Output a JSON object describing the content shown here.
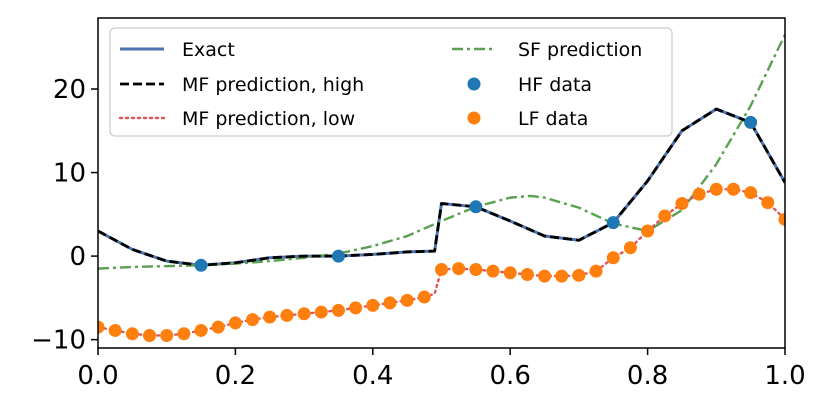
{
  "chart_data": {
    "type": "line",
    "title": "",
    "xlabel": "",
    "ylabel": "",
    "xlim": [
      0.0,
      1.0
    ],
    "ylim": [
      -11.0,
      28.5
    ],
    "grid": false,
    "legend_position": "top-left",
    "x_ticks": [
      0.0,
      0.2,
      0.4,
      0.6,
      0.8,
      1.0
    ],
    "x_tick_labels": [
      "0.0",
      "0.2",
      "0.4",
      "0.6",
      "0.8",
      "1.0"
    ],
    "y_ticks": [
      -10,
      0,
      10,
      20
    ],
    "y_tick_labels": [
      "−10",
      "0",
      "10",
      "20"
    ],
    "series": [
      {
        "name": "Exact",
        "kind": "line",
        "color": "#4c72b0",
        "style": "solid",
        "x": [
          0.0,
          0.05,
          0.1,
          0.15,
          0.2,
          0.25,
          0.3,
          0.35,
          0.4,
          0.45,
          0.49,
          0.5,
          0.55,
          0.6,
          0.65,
          0.7,
          0.75,
          0.8,
          0.85,
          0.9,
          0.95,
          1.0
        ],
        "y": [
          3.0,
          0.8,
          -0.6,
          -1.1,
          -0.8,
          -0.2,
          0.0,
          0.0,
          0.2,
          0.5,
          0.6,
          6.3,
          5.9,
          4.2,
          2.4,
          1.9,
          4.0,
          9.0,
          15.0,
          17.6,
          16.0,
          8.8
        ]
      },
      {
        "name": "MF prediction, high",
        "kind": "line",
        "color": "#000000",
        "style": "dashed",
        "x": [
          0.0,
          0.05,
          0.1,
          0.15,
          0.2,
          0.25,
          0.3,
          0.35,
          0.4,
          0.45,
          0.49,
          0.5,
          0.55,
          0.6,
          0.65,
          0.7,
          0.75,
          0.8,
          0.85,
          0.9,
          0.95,
          1.0
        ],
        "y": [
          3.0,
          0.8,
          -0.6,
          -1.1,
          -0.8,
          -0.2,
          0.0,
          0.0,
          0.2,
          0.5,
          0.6,
          6.3,
          5.9,
          4.2,
          2.4,
          1.9,
          4.0,
          9.0,
          15.0,
          17.6,
          16.0,
          8.8
        ]
      },
      {
        "name": "MF prediction, low",
        "kind": "line",
        "color": "#e15759",
        "style": "dotted",
        "x": [
          0.0,
          0.025,
          0.05,
          0.075,
          0.1,
          0.125,
          0.15,
          0.175,
          0.2,
          0.225,
          0.25,
          0.275,
          0.3,
          0.325,
          0.35,
          0.375,
          0.4,
          0.425,
          0.45,
          0.475,
          0.49,
          0.5,
          0.525,
          0.55,
          0.575,
          0.6,
          0.625,
          0.65,
          0.675,
          0.7,
          0.725,
          0.75,
          0.775,
          0.8,
          0.825,
          0.85,
          0.875,
          0.9,
          0.925,
          0.95,
          0.975,
          1.0
        ],
        "y": [
          -8.5,
          -8.9,
          -9.3,
          -9.5,
          -9.5,
          -9.3,
          -8.9,
          -8.5,
          -8.0,
          -7.6,
          -7.3,
          -7.1,
          -6.9,
          -6.7,
          -6.5,
          -6.2,
          -5.9,
          -5.6,
          -5.3,
          -4.9,
          -4.5,
          -1.6,
          -1.5,
          -1.6,
          -1.8,
          -2.0,
          -2.2,
          -2.4,
          -2.4,
          -2.3,
          -1.8,
          -0.2,
          1.0,
          3.0,
          4.8,
          6.3,
          7.4,
          8.0,
          8.0,
          7.6,
          6.4,
          4.4
        ]
      },
      {
        "name": "SF prediction",
        "kind": "line",
        "color": "#59a14f",
        "style": "dashdot",
        "x": [
          0.0,
          0.05,
          0.1,
          0.15,
          0.2,
          0.25,
          0.3,
          0.35,
          0.4,
          0.45,
          0.5,
          0.55,
          0.6,
          0.63,
          0.65,
          0.7,
          0.75,
          0.8,
          0.85,
          0.9,
          0.95,
          1.0
        ],
        "y": [
          -1.5,
          -1.3,
          -1.2,
          -1.1,
          -0.9,
          -0.6,
          -0.2,
          0.3,
          1.2,
          2.4,
          4.2,
          5.9,
          7.0,
          7.2,
          7.0,
          5.8,
          3.9,
          3.0,
          5.5,
          11.0,
          18.0,
          26.5
        ]
      },
      {
        "name": "HF data",
        "kind": "scatter",
        "color": "#1f77b4",
        "x": [
          0.15,
          0.35,
          0.55,
          0.75,
          0.95
        ],
        "y": [
          -1.1,
          0.0,
          5.9,
          4.0,
          16.0
        ]
      },
      {
        "name": "LF data",
        "kind": "scatter",
        "color": "#ff7f0e",
        "x": [
          0.0,
          0.025,
          0.05,
          0.075,
          0.1,
          0.125,
          0.15,
          0.175,
          0.2,
          0.225,
          0.25,
          0.275,
          0.3,
          0.325,
          0.35,
          0.375,
          0.4,
          0.425,
          0.45,
          0.475,
          0.5,
          0.525,
          0.55,
          0.575,
          0.6,
          0.625,
          0.65,
          0.675,
          0.7,
          0.725,
          0.75,
          0.775,
          0.8,
          0.825,
          0.85,
          0.875,
          0.9,
          0.925,
          0.95,
          0.975,
          1.0
        ],
        "y": [
          -8.5,
          -8.9,
          -9.3,
          -9.5,
          -9.5,
          -9.3,
          -8.9,
          -8.5,
          -8.0,
          -7.6,
          -7.3,
          -7.1,
          -6.9,
          -6.7,
          -6.5,
          -6.2,
          -5.9,
          -5.6,
          -5.3,
          -4.9,
          -1.6,
          -1.5,
          -1.6,
          -1.8,
          -2.0,
          -2.2,
          -2.4,
          -2.4,
          -2.3,
          -1.8,
          -0.2,
          1.0,
          3.0,
          4.8,
          6.3,
          7.4,
          8.0,
          8.0,
          7.6,
          6.4,
          4.4
        ]
      }
    ],
    "legend": [
      {
        "label": "Exact",
        "series": 0
      },
      {
        "label": "MF prediction, high",
        "series": 1
      },
      {
        "label": "MF prediction, low",
        "series": 2
      },
      {
        "label": "SF prediction",
        "series": 3
      },
      {
        "label": "HF data",
        "series": 4
      },
      {
        "label": "LF data",
        "series": 5
      }
    ]
  }
}
